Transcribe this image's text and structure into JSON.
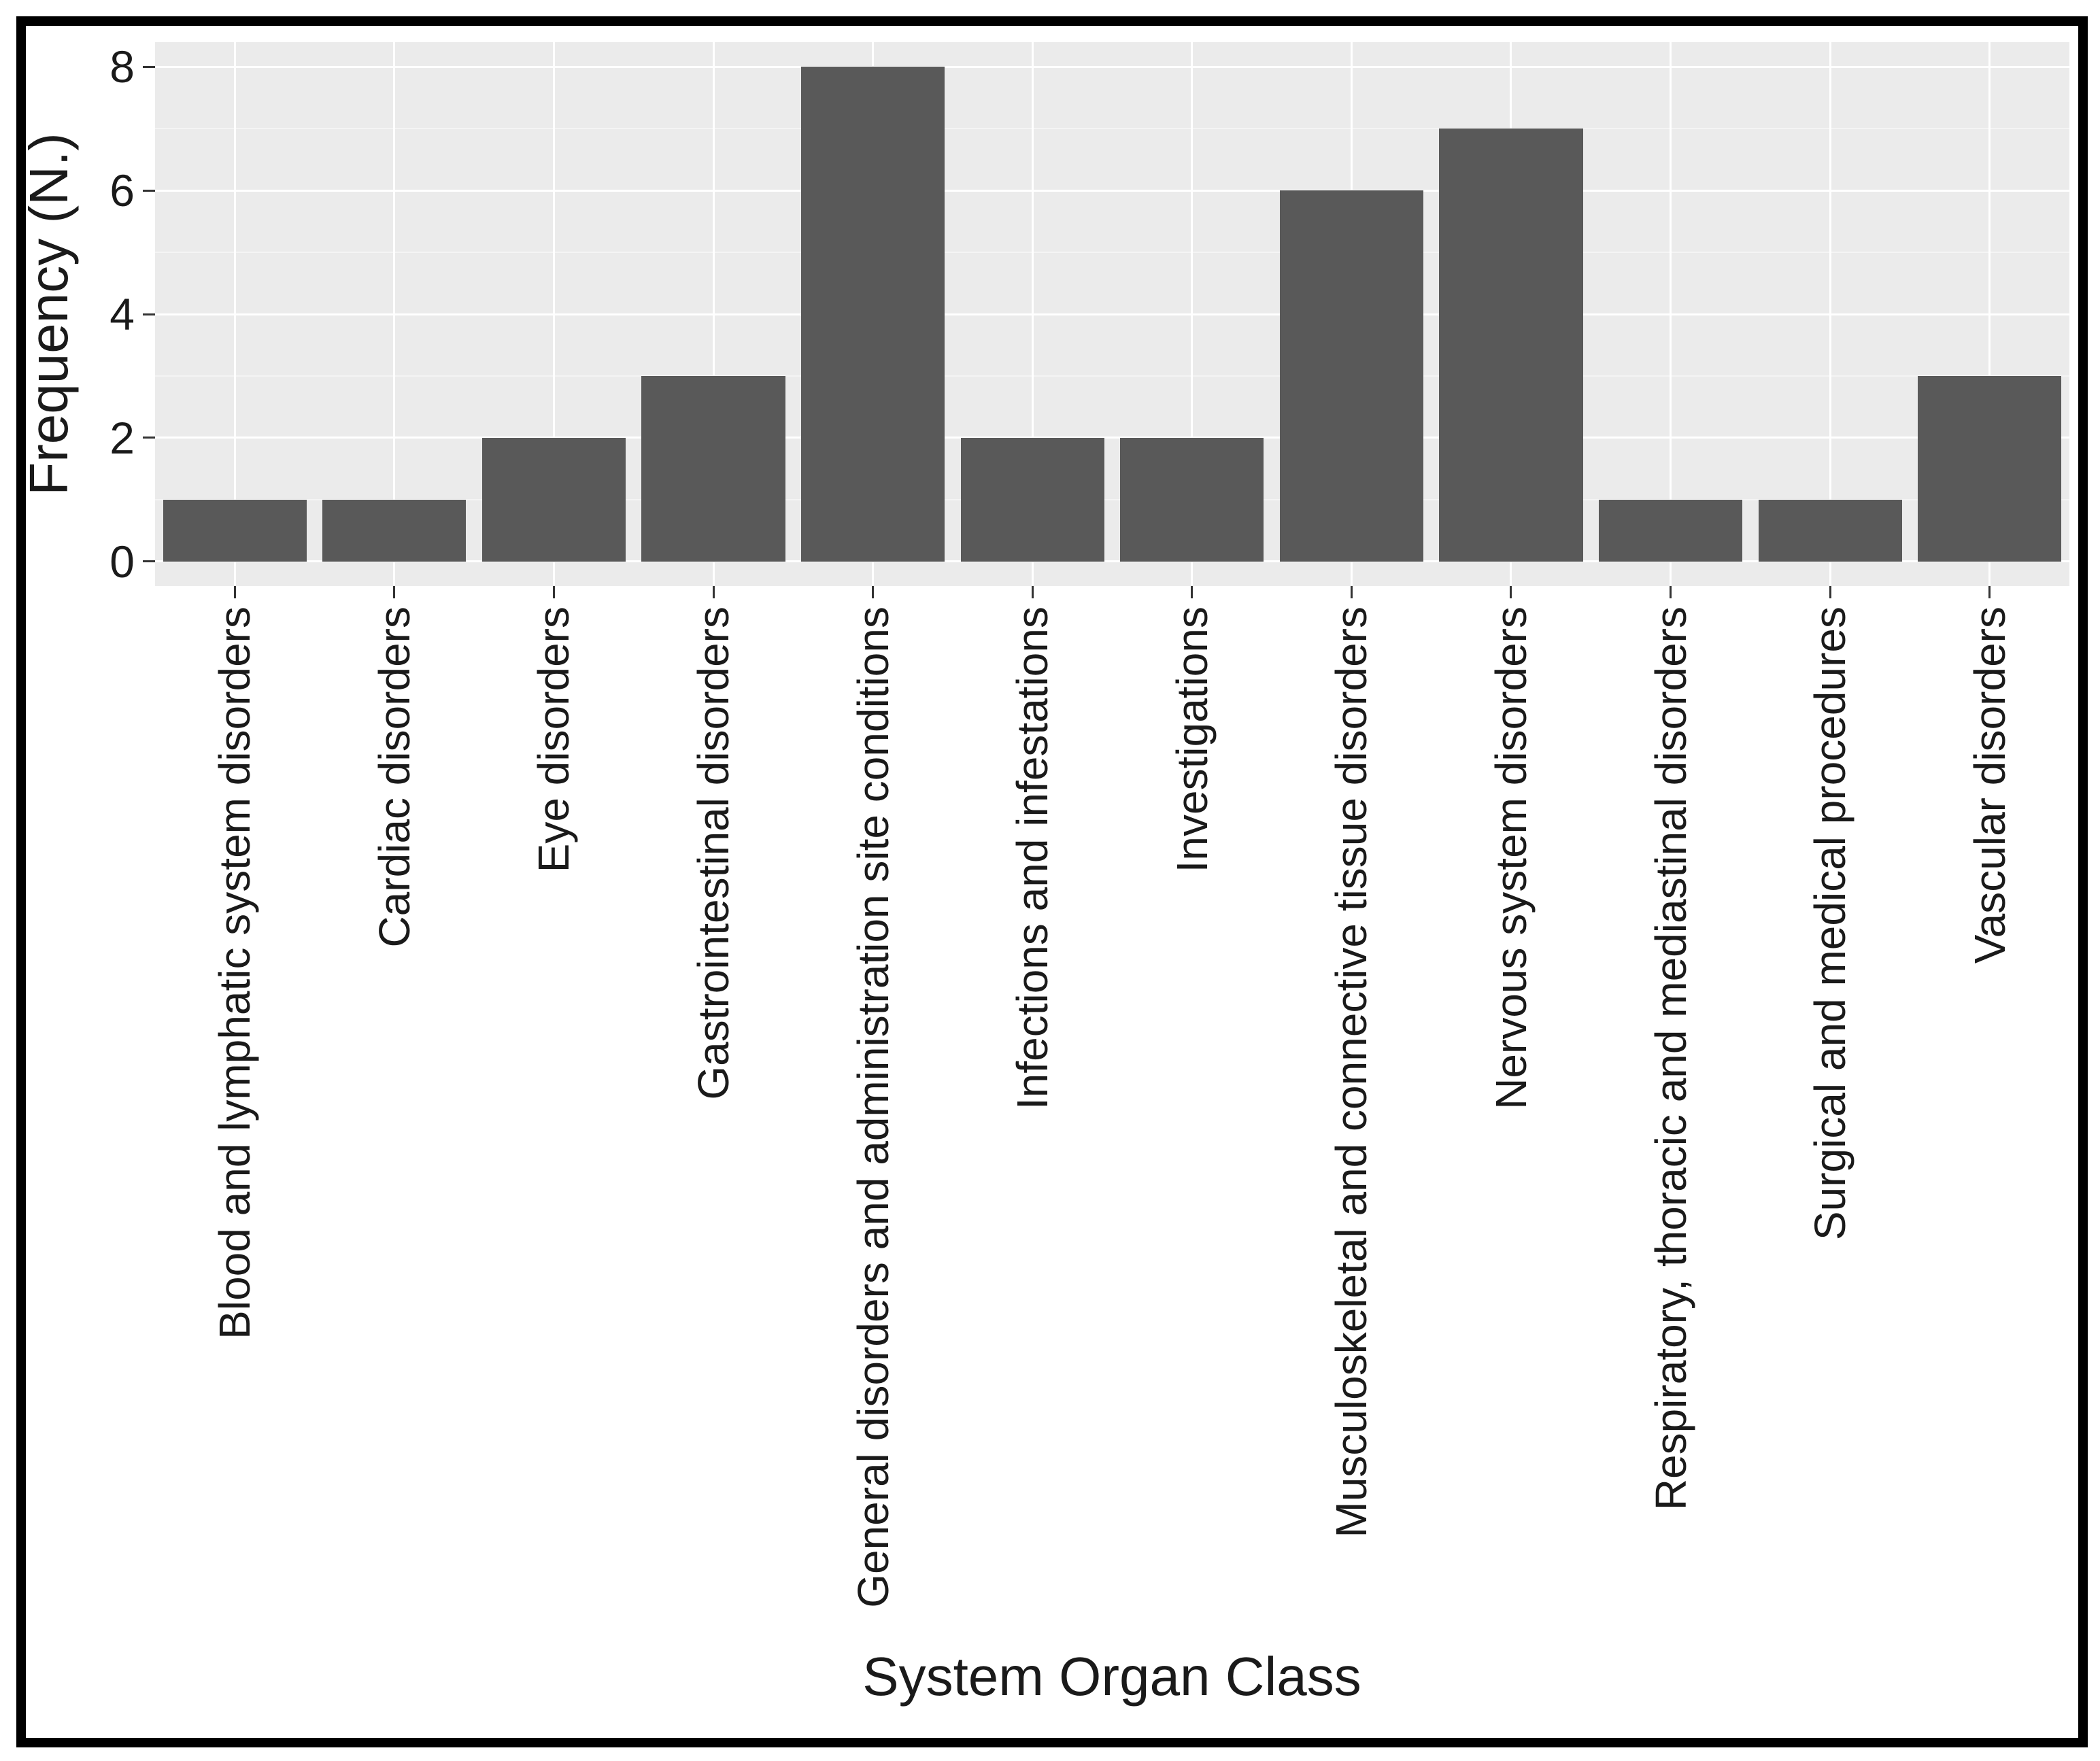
{
  "figure": {
    "frame_color": "#000000",
    "background": "#ffffff"
  },
  "chart_data": {
    "type": "bar",
    "title": "",
    "xlabel": "System Organ Class",
    "ylabel": "Frequency (N.)",
    "categories": [
      "Blood and lymphatic system disorders",
      "Cardiac disorders",
      "Eye disorders",
      "Gastrointestinal disorders",
      "General disorders and administration site conditions",
      "Infections and infestations",
      "Investigations",
      "Musculoskeletal and connective tissue disorders",
      "Nervous system disorders",
      "Respiratory, thoracic and mediastinal disorders",
      "Surgical and medical procedures",
      "Vascular disorders"
    ],
    "values": [
      1,
      1,
      2,
      3,
      8,
      2,
      2,
      6,
      7,
      1,
      1,
      3
    ],
    "ylim": [
      0,
      8
    ],
    "yticks": [
      0,
      2,
      4,
      6,
      8
    ],
    "minor_yticks": [
      1,
      3,
      5,
      7
    ],
    "grid": "on",
    "legend": "none",
    "bar_width_fraction": 0.9,
    "colors": {
      "bar_fill": "#595959",
      "panel_background": "#ebebeb",
      "major_grid": "#ffffff",
      "minor_grid": "#f4f4f4",
      "tick_mark": "#333333",
      "axis_text": "#1a1a1a"
    }
  }
}
